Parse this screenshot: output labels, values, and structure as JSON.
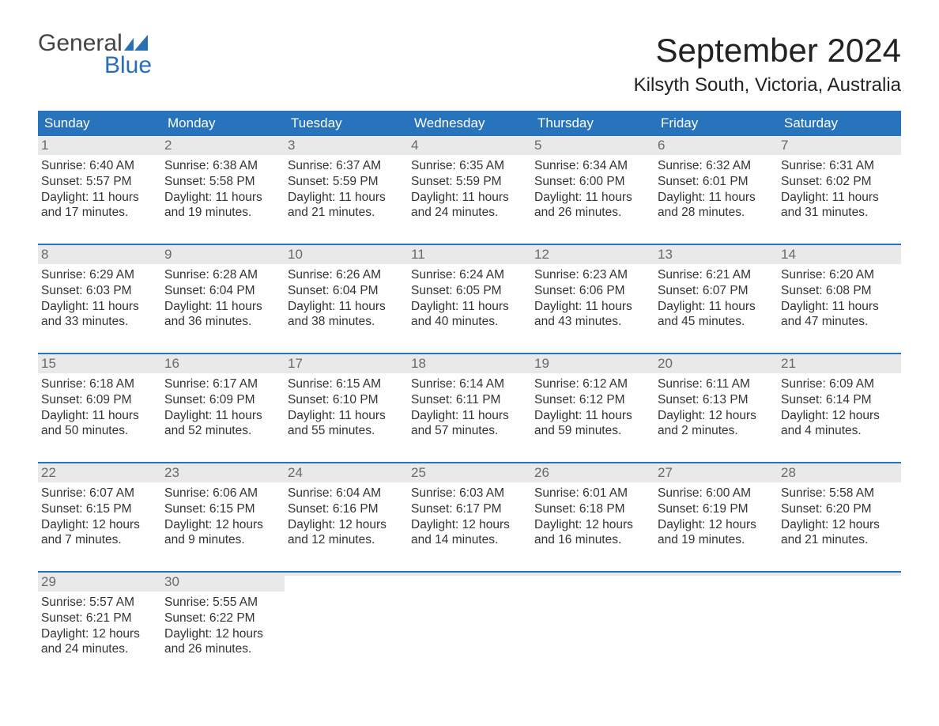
{
  "brand": {
    "word1": "General",
    "word2": "Blue",
    "word1_color": "#444444",
    "word2_color": "#2a6fb5",
    "flag_color": "#2a6fb5",
    "font_size_pt": 22
  },
  "title": "September 2024",
  "title_fontsize_pt": 32,
  "location": "Kilsyth South, Victoria, Australia",
  "location_fontsize_pt": 18,
  "colors": {
    "header_bg": "#2874bc",
    "header_text": "#ffffff",
    "week_border": "#2874bc",
    "daynum_bg": "#e9e9e9",
    "daynum_text": "#6a6a6a",
    "body_text": "#333333",
    "page_bg": "#ffffff"
  },
  "days_of_week": [
    "Sunday",
    "Monday",
    "Tuesday",
    "Wednesday",
    "Thursday",
    "Friday",
    "Saturday"
  ],
  "weeks": [
    [
      {
        "n": "1",
        "sunrise": "Sunrise: 6:40 AM",
        "sunset": "Sunset: 5:57 PM",
        "dl1": "Daylight: 11 hours",
        "dl2": "and 17 minutes."
      },
      {
        "n": "2",
        "sunrise": "Sunrise: 6:38 AM",
        "sunset": "Sunset: 5:58 PM",
        "dl1": "Daylight: 11 hours",
        "dl2": "and 19 minutes."
      },
      {
        "n": "3",
        "sunrise": "Sunrise: 6:37 AM",
        "sunset": "Sunset: 5:59 PM",
        "dl1": "Daylight: 11 hours",
        "dl2": "and 21 minutes."
      },
      {
        "n": "4",
        "sunrise": "Sunrise: 6:35 AM",
        "sunset": "Sunset: 5:59 PM",
        "dl1": "Daylight: 11 hours",
        "dl2": "and 24 minutes."
      },
      {
        "n": "5",
        "sunrise": "Sunrise: 6:34 AM",
        "sunset": "Sunset: 6:00 PM",
        "dl1": "Daylight: 11 hours",
        "dl2": "and 26 minutes."
      },
      {
        "n": "6",
        "sunrise": "Sunrise: 6:32 AM",
        "sunset": "Sunset: 6:01 PM",
        "dl1": "Daylight: 11 hours",
        "dl2": "and 28 minutes."
      },
      {
        "n": "7",
        "sunrise": "Sunrise: 6:31 AM",
        "sunset": "Sunset: 6:02 PM",
        "dl1": "Daylight: 11 hours",
        "dl2": "and 31 minutes."
      }
    ],
    [
      {
        "n": "8",
        "sunrise": "Sunrise: 6:29 AM",
        "sunset": "Sunset: 6:03 PM",
        "dl1": "Daylight: 11 hours",
        "dl2": "and 33 minutes."
      },
      {
        "n": "9",
        "sunrise": "Sunrise: 6:28 AM",
        "sunset": "Sunset: 6:04 PM",
        "dl1": "Daylight: 11 hours",
        "dl2": "and 36 minutes."
      },
      {
        "n": "10",
        "sunrise": "Sunrise: 6:26 AM",
        "sunset": "Sunset: 6:04 PM",
        "dl1": "Daylight: 11 hours",
        "dl2": "and 38 minutes."
      },
      {
        "n": "11",
        "sunrise": "Sunrise: 6:24 AM",
        "sunset": "Sunset: 6:05 PM",
        "dl1": "Daylight: 11 hours",
        "dl2": "and 40 minutes."
      },
      {
        "n": "12",
        "sunrise": "Sunrise: 6:23 AM",
        "sunset": "Sunset: 6:06 PM",
        "dl1": "Daylight: 11 hours",
        "dl2": "and 43 minutes."
      },
      {
        "n": "13",
        "sunrise": "Sunrise: 6:21 AM",
        "sunset": "Sunset: 6:07 PM",
        "dl1": "Daylight: 11 hours",
        "dl2": "and 45 minutes."
      },
      {
        "n": "14",
        "sunrise": "Sunrise: 6:20 AM",
        "sunset": "Sunset: 6:08 PM",
        "dl1": "Daylight: 11 hours",
        "dl2": "and 47 minutes."
      }
    ],
    [
      {
        "n": "15",
        "sunrise": "Sunrise: 6:18 AM",
        "sunset": "Sunset: 6:09 PM",
        "dl1": "Daylight: 11 hours",
        "dl2": "and 50 minutes."
      },
      {
        "n": "16",
        "sunrise": "Sunrise: 6:17 AM",
        "sunset": "Sunset: 6:09 PM",
        "dl1": "Daylight: 11 hours",
        "dl2": "and 52 minutes."
      },
      {
        "n": "17",
        "sunrise": "Sunrise: 6:15 AM",
        "sunset": "Sunset: 6:10 PM",
        "dl1": "Daylight: 11 hours",
        "dl2": "and 55 minutes."
      },
      {
        "n": "18",
        "sunrise": "Sunrise: 6:14 AM",
        "sunset": "Sunset: 6:11 PM",
        "dl1": "Daylight: 11 hours",
        "dl2": "and 57 minutes."
      },
      {
        "n": "19",
        "sunrise": "Sunrise: 6:12 AM",
        "sunset": "Sunset: 6:12 PM",
        "dl1": "Daylight: 11 hours",
        "dl2": "and 59 minutes."
      },
      {
        "n": "20",
        "sunrise": "Sunrise: 6:11 AM",
        "sunset": "Sunset: 6:13 PM",
        "dl1": "Daylight: 12 hours",
        "dl2": "and 2 minutes."
      },
      {
        "n": "21",
        "sunrise": "Sunrise: 6:09 AM",
        "sunset": "Sunset: 6:14 PM",
        "dl1": "Daylight: 12 hours",
        "dl2": "and 4 minutes."
      }
    ],
    [
      {
        "n": "22",
        "sunrise": "Sunrise: 6:07 AM",
        "sunset": "Sunset: 6:15 PM",
        "dl1": "Daylight: 12 hours",
        "dl2": "and 7 minutes."
      },
      {
        "n": "23",
        "sunrise": "Sunrise: 6:06 AM",
        "sunset": "Sunset: 6:15 PM",
        "dl1": "Daylight: 12 hours",
        "dl2": "and 9 minutes."
      },
      {
        "n": "24",
        "sunrise": "Sunrise: 6:04 AM",
        "sunset": "Sunset: 6:16 PM",
        "dl1": "Daylight: 12 hours",
        "dl2": "and 12 minutes."
      },
      {
        "n": "25",
        "sunrise": "Sunrise: 6:03 AM",
        "sunset": "Sunset: 6:17 PM",
        "dl1": "Daylight: 12 hours",
        "dl2": "and 14 minutes."
      },
      {
        "n": "26",
        "sunrise": "Sunrise: 6:01 AM",
        "sunset": "Sunset: 6:18 PM",
        "dl1": "Daylight: 12 hours",
        "dl2": "and 16 minutes."
      },
      {
        "n": "27",
        "sunrise": "Sunrise: 6:00 AM",
        "sunset": "Sunset: 6:19 PM",
        "dl1": "Daylight: 12 hours",
        "dl2": "and 19 minutes."
      },
      {
        "n": "28",
        "sunrise": "Sunrise: 5:58 AM",
        "sunset": "Sunset: 6:20 PM",
        "dl1": "Daylight: 12 hours",
        "dl2": "and 21 minutes."
      }
    ],
    [
      {
        "n": "29",
        "sunrise": "Sunrise: 5:57 AM",
        "sunset": "Sunset: 6:21 PM",
        "dl1": "Daylight: 12 hours",
        "dl2": "and 24 minutes."
      },
      {
        "n": "30",
        "sunrise": "Sunrise: 5:55 AM",
        "sunset": "Sunset: 6:22 PM",
        "dl1": "Daylight: 12 hours",
        "dl2": "and 26 minutes."
      },
      null,
      null,
      null,
      null,
      null
    ]
  ]
}
